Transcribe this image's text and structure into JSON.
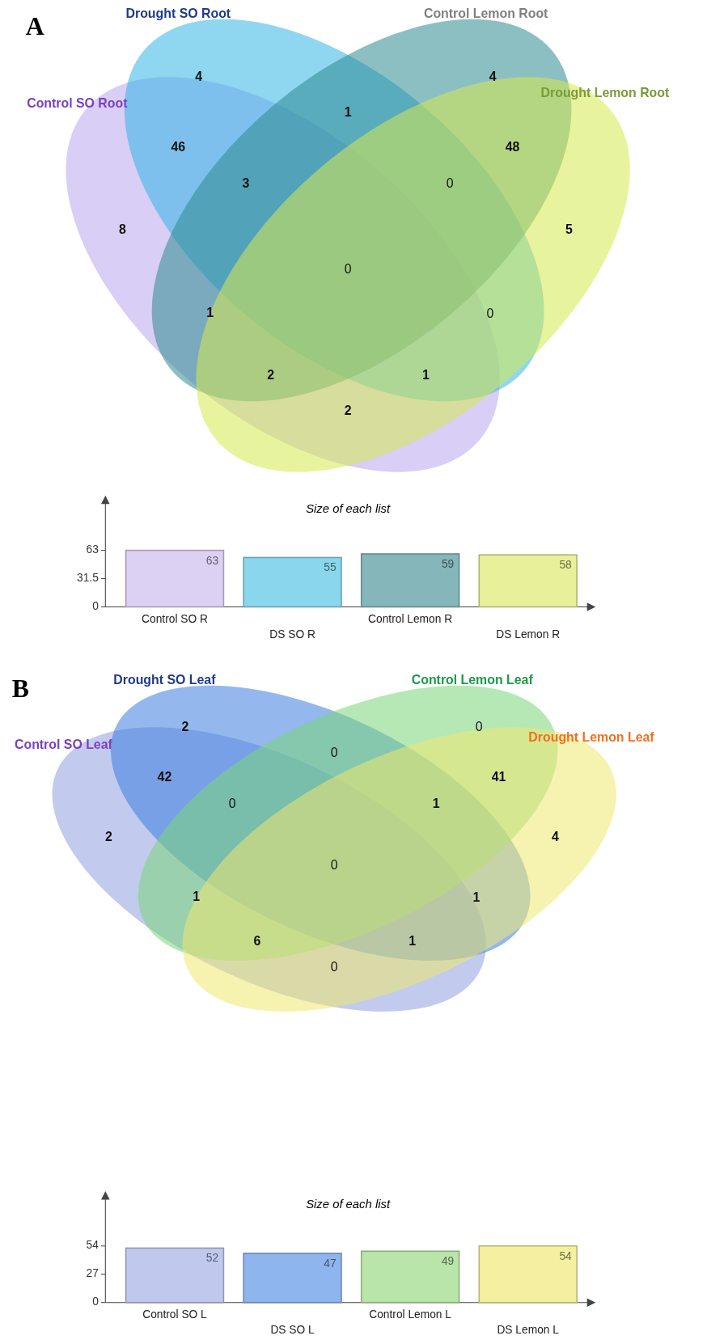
{
  "chart_data": [
    {
      "type": "other",
      "title": "A",
      "series": [
        {
          "name": "Control SO Root"
        },
        {
          "name": "Drought SO Root"
        },
        {
          "name": "Control Lemon Root"
        },
        {
          "name": "Drought Lemon Root"
        }
      ],
      "annotations": [
        "8",
        "4",
        "4",
        "5",
        "46",
        "1",
        "2",
        "1",
        "0",
        "48",
        "3",
        "1",
        "2",
        "0",
        "0"
      ]
    },
    {
      "type": "bar",
      "title": "Size of each list",
      "categories": [
        "Control SO R",
        "DS SO R",
        "Control Lemon R",
        "DS Lemon R"
      ],
      "values": [
        63,
        55,
        59,
        58
      ],
      "colors": [
        "#dcd0f3",
        "#8ad6ec",
        "#85b6b9",
        "#e8f09a"
      ],
      "ylim": [
        0,
        63
      ],
      "yticks": [
        0,
        31.5,
        63
      ],
      "data_labels": true
    },
    {
      "type": "other",
      "title": "B",
      "series": [
        {
          "name": "Control SO Leaf"
        },
        {
          "name": "Drought SO Leaf"
        },
        {
          "name": "Control Lemon Leaf"
        },
        {
          "name": "Drought Lemon Leaf"
        }
      ],
      "annotations": [
        "2",
        "2",
        "0",
        "4",
        "42",
        "1",
        "0",
        "0",
        "1",
        "41",
        "0",
        "1",
        "6",
        "1",
        "0"
      ]
    },
    {
      "type": "bar",
      "title": "Size of each list",
      "categories": [
        "Control SO L",
        "DS SO L",
        "Control Lemon L",
        "DS Lemon L"
      ],
      "values": [
        52,
        47,
        49,
        54
      ],
      "colors": [
        "#c0c8ee",
        "#8fb5ef",
        "#b9e6a8",
        "#f5f0a0"
      ],
      "ylim": [
        0,
        54
      ],
      "yticks": [
        0,
        27,
        54
      ],
      "data_labels": true
    }
  ]
}
